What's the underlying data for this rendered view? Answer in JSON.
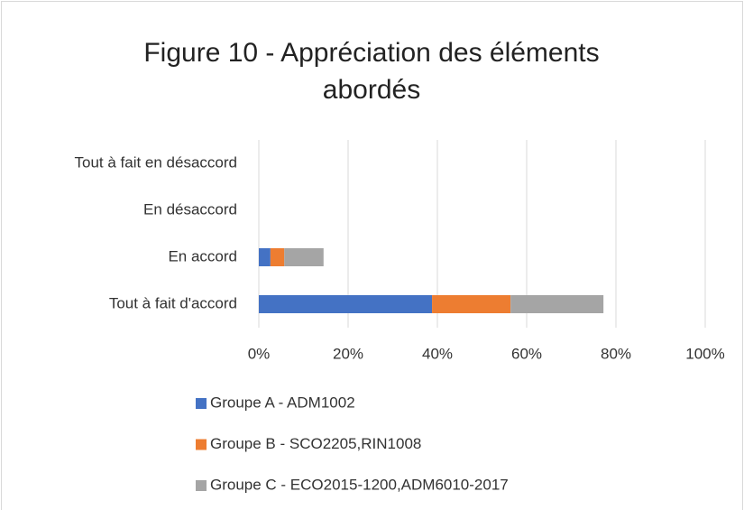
{
  "chart_data": {
    "type": "stacked-barh",
    "title": "Figure 10 - Appréciation des éléments abordés",
    "categories": [
      "Tout à fait d'accord",
      "En accord",
      "En désaccord",
      "Tout à fait en désaccord"
    ],
    "series": [
      {
        "name": "Groupe A - ADM1002",
        "color": "#4472c4",
        "values": [
          38.8,
          2.6,
          0,
          0
        ]
      },
      {
        "name": "Groupe B - SCO2205,RIN1008",
        "color": "#ed7d31",
        "values": [
          17.6,
          3.1,
          0,
          0
        ]
      },
      {
        "name": "Groupe C - ECO2015-1200,ADM6010-2017",
        "color": "#a5a5a5",
        "values": [
          20.8,
          8.8,
          0,
          0
        ]
      }
    ],
    "xlim": [
      0,
      100
    ],
    "xticks": [
      {
        "value": 0,
        "label": "0%"
      },
      {
        "value": 20,
        "label": "20%"
      },
      {
        "value": 40,
        "label": "40%"
      },
      {
        "value": 60,
        "label": "60%"
      },
      {
        "value": 80,
        "label": "80%"
      },
      {
        "value": 100,
        "label": "100%"
      }
    ],
    "grid": true,
    "legend": "bottom"
  }
}
